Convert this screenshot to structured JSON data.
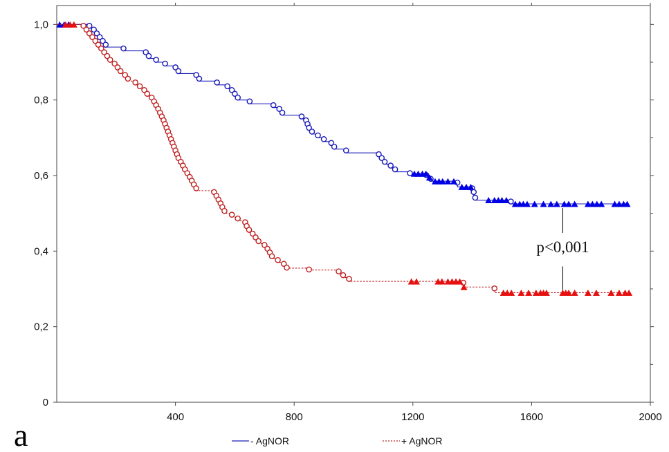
{
  "chart_data": {
    "type": "line",
    "subtype": "kaplan-meier",
    "title": "",
    "xlabel": "",
    "ylabel": "",
    "panel_label": "a",
    "annotation": "p<0,001",
    "xlim": [
      0,
      2000
    ],
    "ylim": [
      0,
      1.05
    ],
    "xticks": [
      400,
      800,
      1200,
      1600,
      2000
    ],
    "xtick_labels": [
      "400",
      "800",
      "1200",
      "1600",
      "2000"
    ],
    "yticks": [
      0,
      0.2,
      0.4,
      0.6,
      0.8,
      1.0
    ],
    "ytick_labels": [
      "0",
      "0,2",
      "0,4",
      "0,6",
      "0,8",
      "1,0"
    ],
    "grid": false,
    "legend_position": "bottom-center",
    "series": [
      {
        "name": "- AgNOR",
        "color": "#1a1ab8",
        "line_style": "solid",
        "censor_color": "#0000e6",
        "steps": [
          [
            0,
            1.0
          ],
          [
            110,
            0.99
          ],
          [
            125,
            0.98
          ],
          [
            135,
            0.97
          ],
          [
            145,
            0.96
          ],
          [
            155,
            0.95
          ],
          [
            165,
            0.94
          ],
          [
            225,
            0.93
          ],
          [
            300,
            0.92
          ],
          [
            310,
            0.91
          ],
          [
            335,
            0.9
          ],
          [
            365,
            0.89
          ],
          [
            400,
            0.88
          ],
          [
            410,
            0.87
          ],
          [
            470,
            0.86
          ],
          [
            480,
            0.85
          ],
          [
            540,
            0.84
          ],
          [
            575,
            0.83
          ],
          [
            590,
            0.82
          ],
          [
            600,
            0.81
          ],
          [
            610,
            0.8
          ],
          [
            650,
            0.79
          ],
          [
            730,
            0.78
          ],
          [
            750,
            0.77
          ],
          [
            760,
            0.76
          ],
          [
            825,
            0.75
          ],
          [
            840,
            0.74
          ],
          [
            845,
            0.73
          ],
          [
            850,
            0.72
          ],
          [
            860,
            0.71
          ],
          [
            880,
            0.7
          ],
          [
            900,
            0.69
          ],
          [
            925,
            0.68
          ],
          [
            935,
            0.67
          ],
          [
            975,
            0.66
          ],
          [
            1085,
            0.65
          ],
          [
            1095,
            0.64
          ],
          [
            1105,
            0.63
          ],
          [
            1125,
            0.62
          ],
          [
            1140,
            0.61
          ],
          [
            1190,
            0.605
          ],
          [
            1245,
            0.595
          ],
          [
            1260,
            0.585
          ],
          [
            1350,
            0.57
          ],
          [
            1400,
            0.56
          ],
          [
            1405,
            0.545
          ],
          [
            1410,
            0.535
          ],
          [
            1530,
            0.525
          ],
          [
            1920,
            0.525
          ]
        ],
        "events_x": [
          110,
          125,
          135,
          145,
          155,
          165,
          225,
          300,
          310,
          335,
          365,
          400,
          410,
          470,
          480,
          540,
          575,
          590,
          600,
          610,
          650,
          730,
          750,
          760,
          825,
          840,
          845,
          850,
          860,
          880,
          900,
          925,
          935,
          975,
          1085,
          1095,
          1105,
          1125,
          1140,
          1190,
          1245,
          1260,
          1350,
          1400,
          1405,
          1410,
          1530
        ],
        "censored_x": [
          10,
          25,
          40,
          1205,
          1218,
          1232,
          1244,
          1256,
          1275,
          1288,
          1300,
          1318,
          1338,
          1365,
          1380,
          1395,
          1455,
          1475,
          1488,
          1500,
          1515,
          1545,
          1560,
          1572,
          1585,
          1610,
          1640,
          1665,
          1685,
          1710,
          1725,
          1745,
          1790,
          1805,
          1820,
          1835,
          1880,
          1895,
          1910,
          1922
        ]
      },
      {
        "name": "+ AgNOR",
        "color": "#c02020",
        "line_style": "dashed",
        "censor_color": "#e61010",
        "steps": [
          [
            0,
            1.0
          ],
          [
            90,
            0.99
          ],
          [
            100,
            0.98
          ],
          [
            110,
            0.97
          ],
          [
            120,
            0.96
          ],
          [
            130,
            0.95
          ],
          [
            140,
            0.94
          ],
          [
            150,
            0.93
          ],
          [
            160,
            0.92
          ],
          [
            170,
            0.91
          ],
          [
            180,
            0.9
          ],
          [
            195,
            0.89
          ],
          [
            205,
            0.88
          ],
          [
            215,
            0.87
          ],
          [
            230,
            0.86
          ],
          [
            240,
            0.85
          ],
          [
            265,
            0.84
          ],
          [
            280,
            0.83
          ],
          [
            295,
            0.82
          ],
          [
            305,
            0.81
          ],
          [
            320,
            0.8
          ],
          [
            328,
            0.79
          ],
          [
            335,
            0.78
          ],
          [
            342,
            0.77
          ],
          [
            348,
            0.76
          ],
          [
            354,
            0.75
          ],
          [
            360,
            0.74
          ],
          [
            365,
            0.73
          ],
          [
            370,
            0.72
          ],
          [
            375,
            0.71
          ],
          [
            380,
            0.7
          ],
          [
            385,
            0.69
          ],
          [
            390,
            0.68
          ],
          [
            395,
            0.67
          ],
          [
            400,
            0.66
          ],
          [
            405,
            0.65
          ],
          [
            410,
            0.64
          ],
          [
            418,
            0.63
          ],
          [
            425,
            0.62
          ],
          [
            432,
            0.61
          ],
          [
            440,
            0.6
          ],
          [
            448,
            0.59
          ],
          [
            455,
            0.58
          ],
          [
            462,
            0.57
          ],
          [
            470,
            0.56
          ],
          [
            530,
            0.55
          ],
          [
            538,
            0.54
          ],
          [
            545,
            0.53
          ],
          [
            552,
            0.52
          ],
          [
            558,
            0.51
          ],
          [
            565,
            0.5
          ],
          [
            590,
            0.49
          ],
          [
            610,
            0.48
          ],
          [
            635,
            0.47
          ],
          [
            640,
            0.46
          ],
          [
            648,
            0.45
          ],
          [
            660,
            0.44
          ],
          [
            670,
            0.43
          ],
          [
            680,
            0.42
          ],
          [
            700,
            0.41
          ],
          [
            710,
            0.4
          ],
          [
            718,
            0.39
          ],
          [
            725,
            0.38
          ],
          [
            745,
            0.37
          ],
          [
            765,
            0.36
          ],
          [
            775,
            0.355
          ],
          [
            850,
            0.35
          ],
          [
            950,
            0.34
          ],
          [
            965,
            0.33
          ],
          [
            985,
            0.32
          ],
          [
            1370,
            0.305
          ],
          [
            1475,
            0.29
          ],
          [
            1920,
            0.29
          ]
        ],
        "events_x": [
          90,
          100,
          110,
          120,
          130,
          140,
          150,
          160,
          170,
          180,
          195,
          205,
          215,
          230,
          240,
          265,
          280,
          295,
          305,
          320,
          328,
          335,
          342,
          348,
          354,
          360,
          365,
          370,
          375,
          380,
          385,
          390,
          395,
          400,
          405,
          410,
          418,
          425,
          432,
          440,
          448,
          455,
          462,
          470,
          530,
          538,
          545,
          552,
          558,
          565,
          590,
          610,
          635,
          640,
          648,
          660,
          670,
          680,
          700,
          710,
          718,
          725,
          745,
          765,
          775,
          850,
          950,
          965,
          985,
          1370,
          1475
        ],
        "censored_x": [
          30,
          45,
          58,
          1195,
          1212,
          1285,
          1298,
          1318,
          1332,
          1345,
          1358,
          1372,
          1505,
          1518,
          1532,
          1565,
          1590,
          1615,
          1630,
          1640,
          1650,
          1705,
          1715,
          1725,
          1745,
          1790,
          1818,
          1868,
          1895,
          1915,
          1928
        ]
      }
    ]
  }
}
